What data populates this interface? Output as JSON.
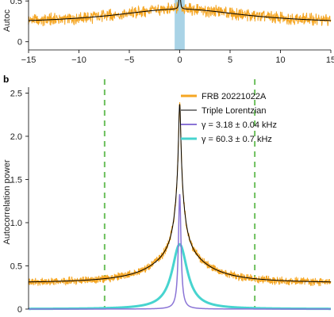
{
  "panel_a": {
    "letter": "",
    "ylabel": "Autoc"
  },
  "panel_b": {
    "letter": "b",
    "ylabel": "Autocorrelation power"
  },
  "colors": {
    "data": "#f5a623",
    "fit": "#000000",
    "narrow": "#8a74d6",
    "wide": "#47d4cf",
    "dashed": "#6cbf5c",
    "band": "#a9d3e6"
  },
  "chart_data": [
    {
      "type": "line",
      "panel": "a",
      "xlim": [
        -15,
        15
      ],
      "ylim": [
        -0.1,
        0.9
      ],
      "x_ticks": [
        "−15",
        "−10",
        "−5",
        "0",
        "5",
        "10",
        "15"
      ],
      "x_tick_values": [
        -15,
        -10,
        -5,
        0,
        5,
        10,
        15
      ],
      "y_ticks": [
        "0",
        "0.5"
      ],
      "y_tick_values": [
        0,
        0.5
      ],
      "shaded_band": [
        -0.5,
        0.5
      ],
      "series": [
        {
          "role": "data",
          "x": [
            -15,
            -10,
            -5,
            -2,
            -1,
            0,
            1,
            2,
            5,
            10,
            15
          ],
          "y": [
            0.26,
            0.27,
            0.29,
            0.31,
            0.34,
            0.78,
            0.34,
            0.31,
            0.29,
            0.27,
            0.26
          ]
        },
        {
          "role": "fit",
          "x": [
            -15,
            -10,
            -5,
            -2,
            -1,
            0,
            1,
            2,
            5,
            10,
            15
          ],
          "y": [
            0.23,
            0.25,
            0.28,
            0.31,
            0.34,
            0.8,
            0.34,
            0.31,
            0.28,
            0.25,
            0.23
          ]
        }
      ]
    },
    {
      "type": "line",
      "panel": "b",
      "xlim": [
        -1.55,
        1.55
      ],
      "ylim": [
        0,
        2.55
      ],
      "y_ticks": [
        "0",
        "0.5",
        "1.0",
        "1.5",
        "2.0",
        "2.5"
      ],
      "y_tick_values": [
        0,
        0.5,
        1.0,
        1.5,
        2.0,
        2.5
      ],
      "dashed_lines_x": [
        -0.77,
        0.77
      ],
      "fit_params": {
        "c": 0.3,
        "A1": 1.0,
        "g1": 0.016,
        "A2": 0.75,
        "g2": 0.06,
        "A3": 0.32,
        "g3": 0.32
      },
      "peak": 2.35,
      "series": [
        {
          "name": "FRB 20221022A",
          "role": "data"
        },
        {
          "name": "Triple Lorentzian",
          "role": "fit"
        },
        {
          "name": "γ = 3.18 ± 0.04 kHz",
          "role": "narrow"
        },
        {
          "name": "γ = 60.3 ± 0.7 kHz",
          "role": "wide"
        }
      ],
      "legend_loc": "top-right"
    }
  ]
}
